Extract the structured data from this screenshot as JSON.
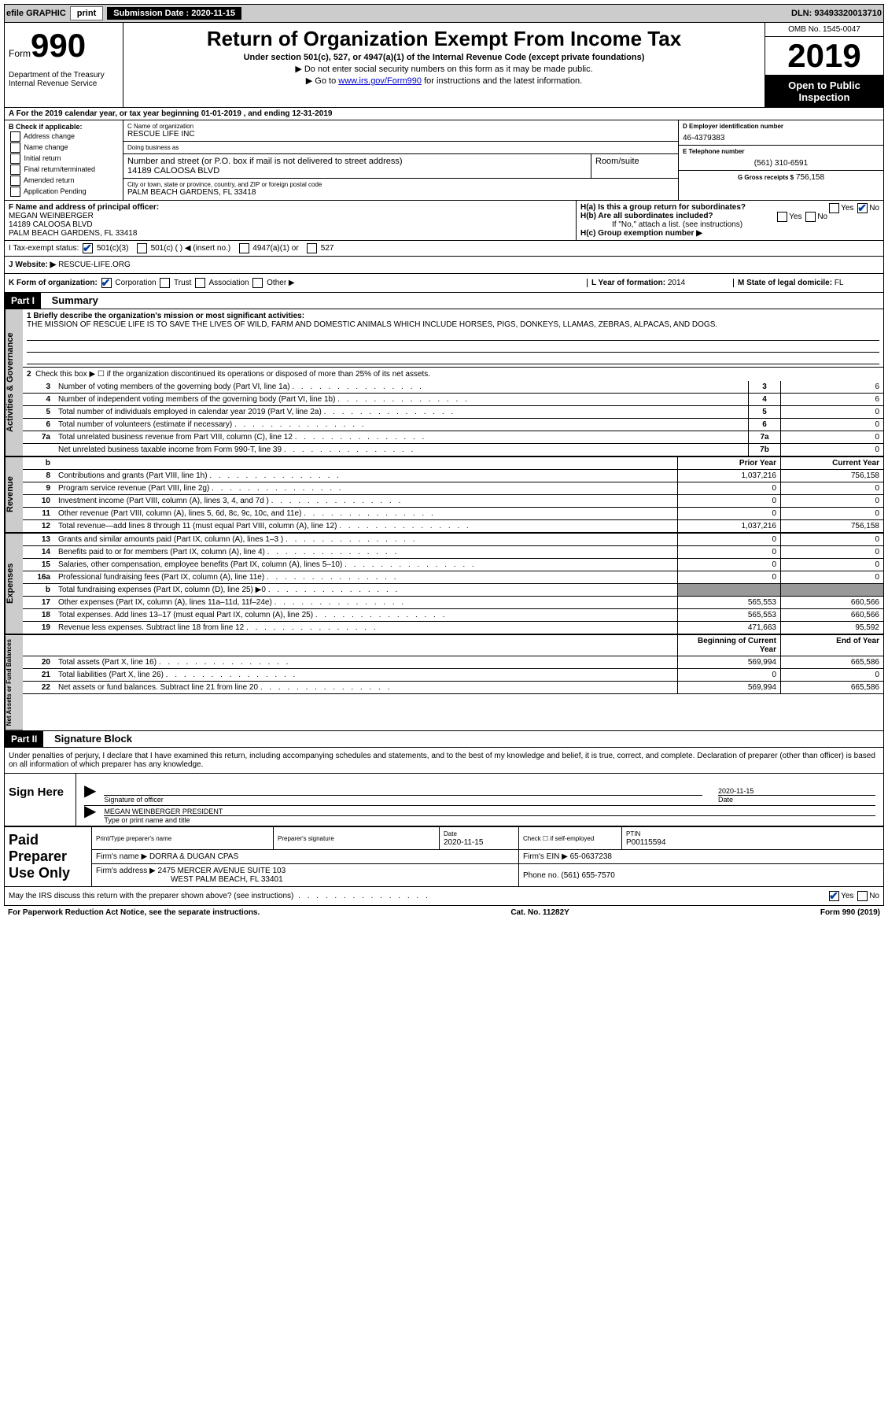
{
  "topbar": {
    "efile": "efile GRAPHIC",
    "print": "print",
    "sub_label": "Submission Date :",
    "sub_date": "2020-11-15",
    "dln": "DLN: 93493320013710"
  },
  "header": {
    "form_word": "Form",
    "form_num": "990",
    "dept": "Department of the Treasury\nInternal Revenue Service",
    "title": "Return of Organization Exempt From Income Tax",
    "sub": "Under section 501(c), 527, or 4947(a)(1) of the Internal Revenue Code (except private foundations)",
    "inst1": "▶ Do not enter social security numbers on this form as it may be made public.",
    "inst2_pre": "▶ Go to ",
    "inst2_link": "www.irs.gov/Form990",
    "inst2_post": " for instructions and the latest information.",
    "omb": "OMB No. 1545-0047",
    "year": "2019",
    "open": "Open to Public Inspection"
  },
  "row_a": "A  For the 2019 calendar year, or tax year beginning 01-01-2019    , and ending 12-31-2019",
  "section_b": {
    "label": "B Check if applicable:",
    "items": [
      "Address change",
      "Name change",
      "Initial return",
      "Final return/terminated",
      "Amended return",
      "Application Pending"
    ]
  },
  "section_c": {
    "name_label": "C Name of organization",
    "name": "RESCUE LIFE INC",
    "dba_label": "Doing business as",
    "dba": "",
    "addr_label": "Number and street (or P.O. box if mail is not delivered to street address)",
    "room_label": "Room/suite",
    "addr": "14189 CALOOSA BLVD",
    "city_label": "City or town, state or province, country, and ZIP or foreign postal code",
    "city": "PALM BEACH GARDENS, FL  33418"
  },
  "section_d": {
    "ein_label": "D Employer identification number",
    "ein": "46-4379383",
    "tel_label": "E Telephone number",
    "tel": "(561) 310-6591",
    "gross_label": "G Gross receipts $",
    "gross": "756,158"
  },
  "section_f": {
    "label": "F Name and address of principal officer:",
    "name": "MEGAN WEINBERGER",
    "addr1": "14189 CALOOSA BLVD",
    "addr2": "PALM BEACH GARDENS, FL  33418"
  },
  "section_h": {
    "ha": "H(a)  Is this a group return for subordinates?",
    "hb": "H(b)  Are all subordinates included?",
    "hb_note": "If \"No,\" attach a list. (see instructions)",
    "hc": "H(c)  Group exemption number ▶"
  },
  "row_i": {
    "label": "I  Tax-exempt status:",
    "opts": [
      "501(c)(3)",
      "501(c) (  ) ◀ (insert no.)",
      "4947(a)(1) or",
      "527"
    ]
  },
  "row_j": {
    "label": "J  Website: ▶",
    "val": "RESCUE-LIFE.ORG"
  },
  "row_k": {
    "label": "K Form of organization:",
    "opts": [
      "Corporation",
      "Trust",
      "Association",
      "Other ▶"
    ],
    "l_label": "L Year of formation:",
    "l_val": "2014",
    "m_label": "M State of legal domicile:",
    "m_val": "FL"
  },
  "part1": {
    "header": "Part I",
    "title": "Summary",
    "q1_label": "1  Briefly describe the organization's mission or most significant activities:",
    "q1_val": "THE MISSION OF RESCUE LIFE IS TO SAVE THE LIVES OF WILD, FARM AND DOMESTIC ANIMALS WHICH INCLUDE HORSES, PIGS, DONKEYS, LLAMAS, ZEBRAS, ALPACAS, AND DOGS.",
    "q2": "Check this box ▶ ☐ if the organization discontinued its operations or disposed of more than 25% of its net assets.",
    "gov_rows": [
      {
        "n": "3",
        "d": "Number of voting members of the governing body (Part VI, line 1a)",
        "box": "3",
        "v": "6"
      },
      {
        "n": "4",
        "d": "Number of independent voting members of the governing body (Part VI, line 1b)",
        "box": "4",
        "v": "6"
      },
      {
        "n": "5",
        "d": "Total number of individuals employed in calendar year 2019 (Part V, line 2a)",
        "box": "5",
        "v": "0"
      },
      {
        "n": "6",
        "d": "Total number of volunteers (estimate if necessary)",
        "box": "6",
        "v": "0"
      },
      {
        "n": "7a",
        "d": "Total unrelated business revenue from Part VIII, column (C), line 12",
        "box": "7a",
        "v": "0"
      },
      {
        "n": "",
        "d": "Net unrelated business taxable income from Form 990-T, line 39",
        "box": "7b",
        "v": "0"
      }
    ],
    "col_b_hdr": "b",
    "prior_hdr": "Prior Year",
    "curr_hdr": "Current Year",
    "rev_rows": [
      {
        "n": "8",
        "d": "Contributions and grants (Part VIII, line 1h)",
        "p": "1,037,216",
        "c": "756,158"
      },
      {
        "n": "9",
        "d": "Program service revenue (Part VIII, line 2g)",
        "p": "0",
        "c": "0"
      },
      {
        "n": "10",
        "d": "Investment income (Part VIII, column (A), lines 3, 4, and 7d )",
        "p": "0",
        "c": "0"
      },
      {
        "n": "11",
        "d": "Other revenue (Part VIII, column (A), lines 5, 6d, 8c, 9c, 10c, and 11e)",
        "p": "0",
        "c": "0"
      },
      {
        "n": "12",
        "d": "Total revenue—add lines 8 through 11 (must equal Part VIII, column (A), line 12)",
        "p": "1,037,216",
        "c": "756,158"
      }
    ],
    "exp_rows": [
      {
        "n": "13",
        "d": "Grants and similar amounts paid (Part IX, column (A), lines 1–3 )",
        "p": "0",
        "c": "0"
      },
      {
        "n": "14",
        "d": "Benefits paid to or for members (Part IX, column (A), line 4)",
        "p": "0",
        "c": "0"
      },
      {
        "n": "15",
        "d": "Salaries, other compensation, employee benefits (Part IX, column (A), lines 5–10)",
        "p": "0",
        "c": "0"
      },
      {
        "n": "16a",
        "d": "Professional fundraising fees (Part IX, column (A), line 11e)",
        "p": "0",
        "c": "0"
      },
      {
        "n": "b",
        "d": "Total fundraising expenses (Part IX, column (D), line 25) ▶0",
        "p": "grey",
        "c": "grey"
      },
      {
        "n": "17",
        "d": "Other expenses (Part IX, column (A), lines 11a–11d, 11f–24e)",
        "p": "565,553",
        "c": "660,566"
      },
      {
        "n": "18",
        "d": "Total expenses. Add lines 13–17 (must equal Part IX, column (A), line 25)",
        "p": "565,553",
        "c": "660,566"
      },
      {
        "n": "19",
        "d": "Revenue less expenses. Subtract line 18 from line 12",
        "p": "471,663",
        "c": "95,592"
      }
    ],
    "boy_hdr": "Beginning of Current Year",
    "eoy_hdr": "End of Year",
    "net_rows": [
      {
        "n": "20",
        "d": "Total assets (Part X, line 16)",
        "p": "569,994",
        "c": "665,586"
      },
      {
        "n": "21",
        "d": "Total liabilities (Part X, line 26)",
        "p": "0",
        "c": "0"
      },
      {
        "n": "22",
        "d": "Net assets or fund balances. Subtract line 21 from line 20",
        "p": "569,994",
        "c": "665,586"
      }
    ],
    "side_gov": "Activities & Governance",
    "side_rev": "Revenue",
    "side_exp": "Expenses",
    "side_net": "Net Assets or Fund Balances"
  },
  "part2": {
    "header": "Part II",
    "title": "Signature Block",
    "decl": "Under penalties of perjury, I declare that I have examined this return, including accompanying schedules and statements, and to the best of my knowledge and belief, it is true, correct, and complete. Declaration of preparer (other than officer) is based on all information of which preparer has any knowledge.",
    "sign_here": "Sign Here",
    "sig_label": "Signature of officer",
    "date_label": "Date",
    "sig_date": "2020-11-15",
    "name_title": "MEGAN WEINBERGER  PRESIDENT",
    "name_title_label": "Type or print name and title",
    "paid": "Paid Preparer Use Only",
    "prep_name_label": "Print/Type preparer's name",
    "prep_sig_label": "Preparer's signature",
    "prep_date_label": "Date",
    "prep_date": "2020-11-15",
    "self_emp": "Check ☐ if self-employed",
    "ptin_label": "PTIN",
    "ptin": "P00115594",
    "firm_name_label": "Firm's name    ▶",
    "firm_name": "DORRA & DUGAN CPAS",
    "firm_ein_label": "Firm's EIN ▶",
    "firm_ein": "65-0637238",
    "firm_addr_label": "Firm's address ▶",
    "firm_addr1": "2475 MERCER AVENUE SUITE 103",
    "firm_addr2": "WEST PALM BEACH, FL  33401",
    "phone_label": "Phone no.",
    "phone": "(561) 655-7570",
    "discuss": "May the IRS discuss this return with the preparer shown above? (see instructions)"
  },
  "footer": {
    "left": "For Paperwork Reduction Act Notice, see the separate instructions.",
    "mid": "Cat. No. 11282Y",
    "right": "Form 990 (2019)"
  }
}
